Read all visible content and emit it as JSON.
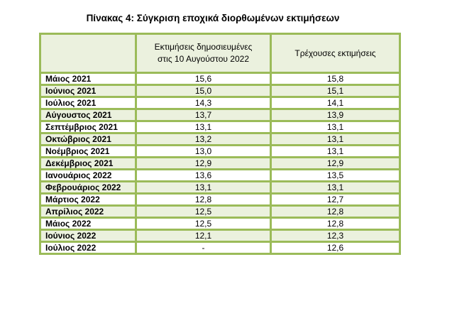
{
  "title": "Πίνακας 4: Σύγκριση εποχικά διορθωμένων εκτιμήσεων",
  "table": {
    "headers": {
      "col0": "",
      "col1_line1": "Εκτιμήσεις δημοσιευμένες",
      "col1_line2": "στις 10 Αυγούστου 2022",
      "col2": "Τρέχουσες εκτιμήσεις"
    },
    "rows": [
      {
        "month": "Μάιος 2021",
        "published": "15,6",
        "current": "15,8"
      },
      {
        "month": "Ιούνιος 2021",
        "published": "15,0",
        "current": "15,1"
      },
      {
        "month": "Ιούλιος 2021",
        "published": "14,3",
        "current": "14,1"
      },
      {
        "month": "Αύγουστος 2021",
        "published": "13,7",
        "current": "13,9"
      },
      {
        "month": "Σεπτέμβριος 2021",
        "published": "13,1",
        "current": "13,1"
      },
      {
        "month": "Οκτώβριος 2021",
        "published": "13,2",
        "current": "13,1"
      },
      {
        "month": "Νοέμβριος 2021",
        "published": "13,0",
        "current": "13,1"
      },
      {
        "month": "Δεκέμβριος 2021",
        "published": "12,9",
        "current": "12,9"
      },
      {
        "month": "Ιανουάριος 2022",
        "published": "13,6",
        "current": "13,5"
      },
      {
        "month": "Φεβρουάριος 2022",
        "published": "13,1",
        "current": "13,1"
      },
      {
        "month": "Μάρτιος 2022",
        "published": "12,8",
        "current": "12,7"
      },
      {
        "month": "Απρίλιος 2022",
        "published": "12,5",
        "current": "12,8"
      },
      {
        "month": "Μάιος 2022",
        "published": "12,5",
        "current": "12,8"
      },
      {
        "month": "Ιούνιος 2022",
        "published": "12,1",
        "current": "12,3"
      },
      {
        "month": "Ιούλιος 2022",
        "published": "-",
        "current": "12,6"
      }
    ]
  },
  "colors": {
    "border": "#9bbb59",
    "header_fill": "#ebf1de",
    "alt_row_fill": "#ebf1de",
    "plain_row_fill": "#ffffff"
  }
}
